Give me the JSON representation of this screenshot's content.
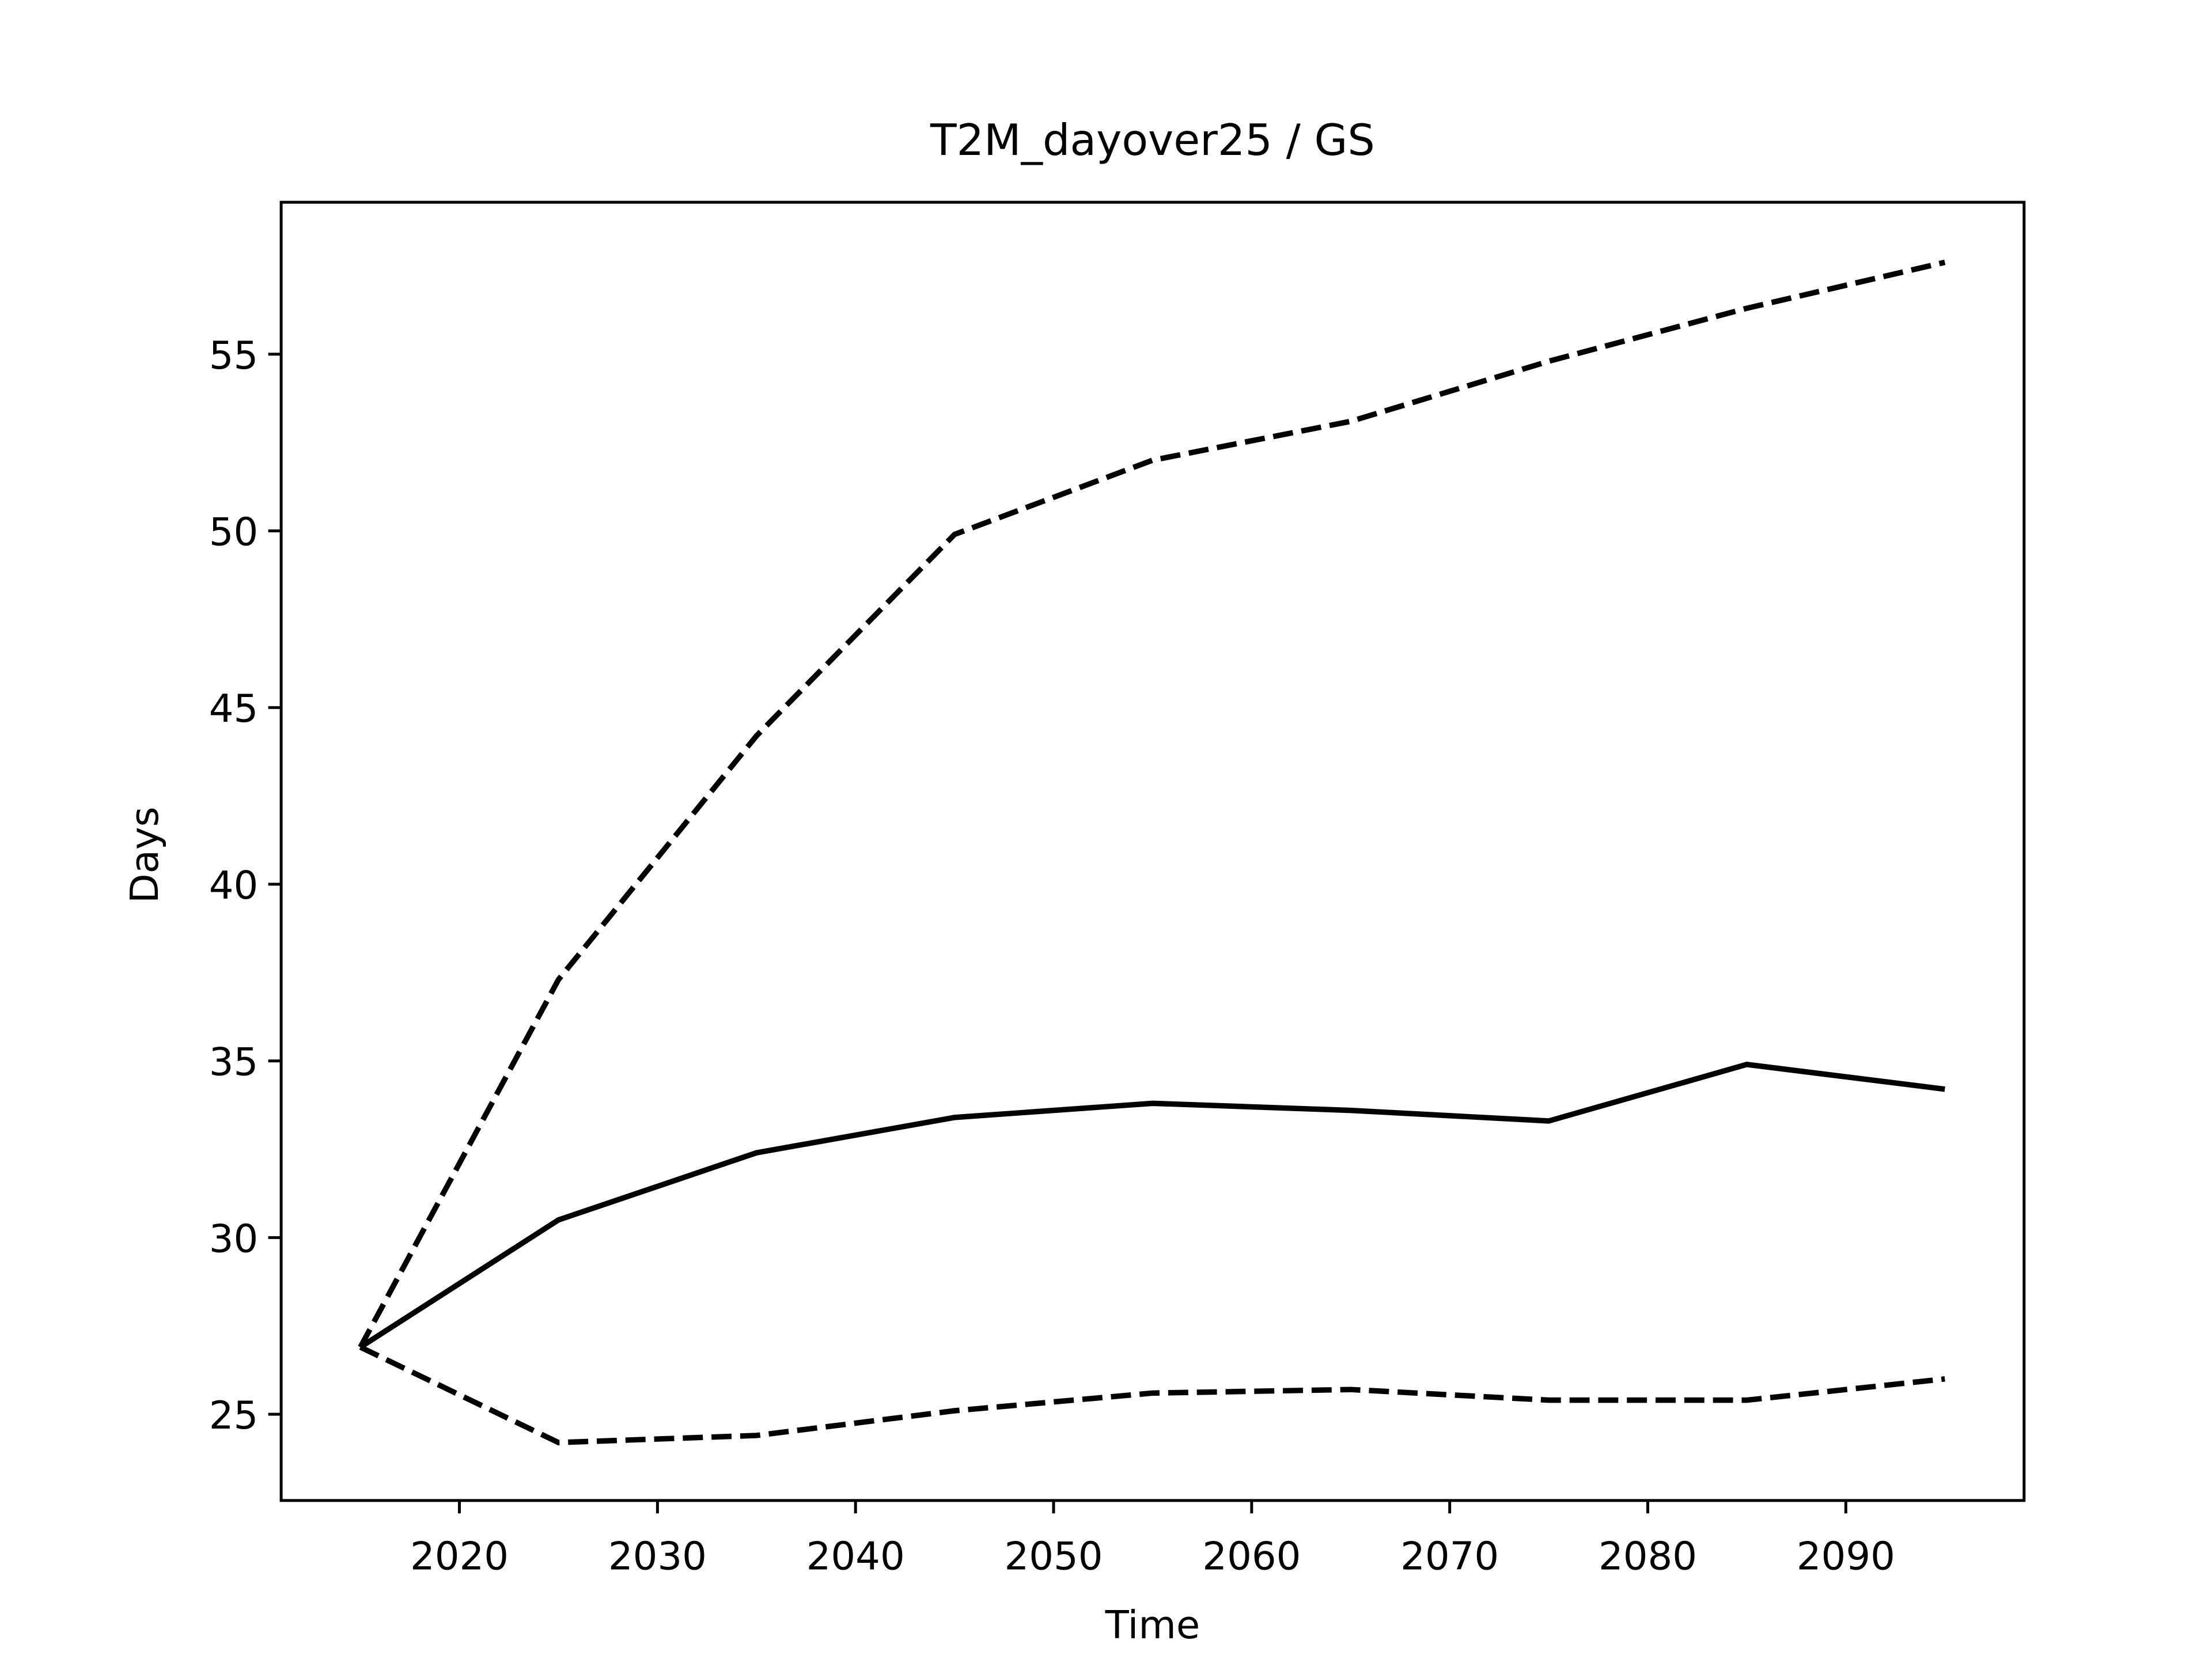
{
  "chart_data": {
    "type": "line",
    "title": "T2M_dayover25 / GS",
    "x_label": "Time",
    "y_label": "Days",
    "x": [
      2015,
      2025,
      2035,
      2045,
      2055,
      2065,
      2075,
      2085,
      2095
    ],
    "series": [
      {
        "color": "#000000",
        "style": "solid",
        "values": [
          26.9,
          30.5,
          32.4,
          33.4,
          33.8,
          33.6,
          33.3,
          34.9,
          34.2
        ]
      },
      {
        "color": "#000000",
        "style": "dashed",
        "values": [
          26.9,
          37.3,
          44.2,
          49.9,
          52.0,
          53.1,
          54.8,
          56.3,
          57.6
        ]
      },
      {
        "color": "#000000",
        "style": "dashed",
        "values": [
          26.9,
          24.2,
          24.4,
          25.1,
          25.6,
          25.7,
          25.4,
          25.4,
          26.0
        ]
      }
    ],
    "xlim": [
      2011,
      2099
    ],
    "ylim": [
      22.56,
      59.3
    ],
    "xticks": [
      2020,
      2030,
      2040,
      2050,
      2060,
      2070,
      2080,
      2090
    ],
    "yticks": [
      25,
      30,
      35,
      40,
      45,
      50,
      55
    ],
    "grid": false
  }
}
